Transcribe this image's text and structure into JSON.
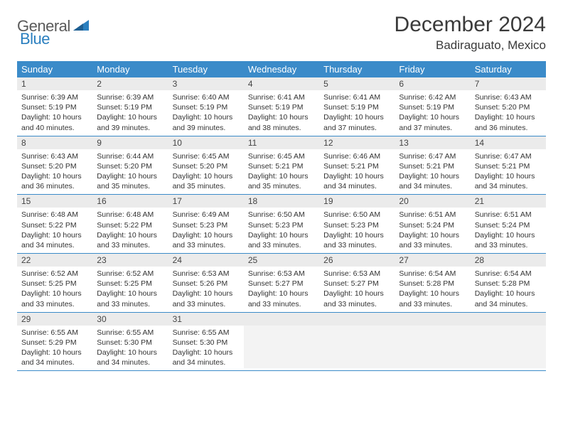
{
  "logo": {
    "t1": "General",
    "t2": "Blue"
  },
  "title": "December 2024",
  "location": "Badiraguato, Mexico",
  "weekdays": [
    "Sunday",
    "Monday",
    "Tuesday",
    "Wednesday",
    "Thursday",
    "Friday",
    "Saturday"
  ],
  "colors": {
    "header_bg": "#3b8bc9",
    "header_fg": "#ffffff",
    "daynum_bg": "#ebebeb",
    "border": "#3b8bc9",
    "logo_blue": "#2a7fbf"
  },
  "weeks": [
    [
      {
        "n": "1",
        "sr": "Sunrise: 6:39 AM",
        "ss": "Sunset: 5:19 PM",
        "dl1": "Daylight: 10 hours",
        "dl2": "and 40 minutes."
      },
      {
        "n": "2",
        "sr": "Sunrise: 6:39 AM",
        "ss": "Sunset: 5:19 PM",
        "dl1": "Daylight: 10 hours",
        "dl2": "and 39 minutes."
      },
      {
        "n": "3",
        "sr": "Sunrise: 6:40 AM",
        "ss": "Sunset: 5:19 PM",
        "dl1": "Daylight: 10 hours",
        "dl2": "and 39 minutes."
      },
      {
        "n": "4",
        "sr": "Sunrise: 6:41 AM",
        "ss": "Sunset: 5:19 PM",
        "dl1": "Daylight: 10 hours",
        "dl2": "and 38 minutes."
      },
      {
        "n": "5",
        "sr": "Sunrise: 6:41 AM",
        "ss": "Sunset: 5:19 PM",
        "dl1": "Daylight: 10 hours",
        "dl2": "and 37 minutes."
      },
      {
        "n": "6",
        "sr": "Sunrise: 6:42 AM",
        "ss": "Sunset: 5:19 PM",
        "dl1": "Daylight: 10 hours",
        "dl2": "and 37 minutes."
      },
      {
        "n": "7",
        "sr": "Sunrise: 6:43 AM",
        "ss": "Sunset: 5:20 PM",
        "dl1": "Daylight: 10 hours",
        "dl2": "and 36 minutes."
      }
    ],
    [
      {
        "n": "8",
        "sr": "Sunrise: 6:43 AM",
        "ss": "Sunset: 5:20 PM",
        "dl1": "Daylight: 10 hours",
        "dl2": "and 36 minutes."
      },
      {
        "n": "9",
        "sr": "Sunrise: 6:44 AM",
        "ss": "Sunset: 5:20 PM",
        "dl1": "Daylight: 10 hours",
        "dl2": "and 35 minutes."
      },
      {
        "n": "10",
        "sr": "Sunrise: 6:45 AM",
        "ss": "Sunset: 5:20 PM",
        "dl1": "Daylight: 10 hours",
        "dl2": "and 35 minutes."
      },
      {
        "n": "11",
        "sr": "Sunrise: 6:45 AM",
        "ss": "Sunset: 5:21 PM",
        "dl1": "Daylight: 10 hours",
        "dl2": "and 35 minutes."
      },
      {
        "n": "12",
        "sr": "Sunrise: 6:46 AM",
        "ss": "Sunset: 5:21 PM",
        "dl1": "Daylight: 10 hours",
        "dl2": "and 34 minutes."
      },
      {
        "n": "13",
        "sr": "Sunrise: 6:47 AM",
        "ss": "Sunset: 5:21 PM",
        "dl1": "Daylight: 10 hours",
        "dl2": "and 34 minutes."
      },
      {
        "n": "14",
        "sr": "Sunrise: 6:47 AM",
        "ss": "Sunset: 5:21 PM",
        "dl1": "Daylight: 10 hours",
        "dl2": "and 34 minutes."
      }
    ],
    [
      {
        "n": "15",
        "sr": "Sunrise: 6:48 AM",
        "ss": "Sunset: 5:22 PM",
        "dl1": "Daylight: 10 hours",
        "dl2": "and 34 minutes."
      },
      {
        "n": "16",
        "sr": "Sunrise: 6:48 AM",
        "ss": "Sunset: 5:22 PM",
        "dl1": "Daylight: 10 hours",
        "dl2": "and 33 minutes."
      },
      {
        "n": "17",
        "sr": "Sunrise: 6:49 AM",
        "ss": "Sunset: 5:23 PM",
        "dl1": "Daylight: 10 hours",
        "dl2": "and 33 minutes."
      },
      {
        "n": "18",
        "sr": "Sunrise: 6:50 AM",
        "ss": "Sunset: 5:23 PM",
        "dl1": "Daylight: 10 hours",
        "dl2": "and 33 minutes."
      },
      {
        "n": "19",
        "sr": "Sunrise: 6:50 AM",
        "ss": "Sunset: 5:23 PM",
        "dl1": "Daylight: 10 hours",
        "dl2": "and 33 minutes."
      },
      {
        "n": "20",
        "sr": "Sunrise: 6:51 AM",
        "ss": "Sunset: 5:24 PM",
        "dl1": "Daylight: 10 hours",
        "dl2": "and 33 minutes."
      },
      {
        "n": "21",
        "sr": "Sunrise: 6:51 AM",
        "ss": "Sunset: 5:24 PM",
        "dl1": "Daylight: 10 hours",
        "dl2": "and 33 minutes."
      }
    ],
    [
      {
        "n": "22",
        "sr": "Sunrise: 6:52 AM",
        "ss": "Sunset: 5:25 PM",
        "dl1": "Daylight: 10 hours",
        "dl2": "and 33 minutes."
      },
      {
        "n": "23",
        "sr": "Sunrise: 6:52 AM",
        "ss": "Sunset: 5:25 PM",
        "dl1": "Daylight: 10 hours",
        "dl2": "and 33 minutes."
      },
      {
        "n": "24",
        "sr": "Sunrise: 6:53 AM",
        "ss": "Sunset: 5:26 PM",
        "dl1": "Daylight: 10 hours",
        "dl2": "and 33 minutes."
      },
      {
        "n": "25",
        "sr": "Sunrise: 6:53 AM",
        "ss": "Sunset: 5:27 PM",
        "dl1": "Daylight: 10 hours",
        "dl2": "and 33 minutes."
      },
      {
        "n": "26",
        "sr": "Sunrise: 6:53 AM",
        "ss": "Sunset: 5:27 PM",
        "dl1": "Daylight: 10 hours",
        "dl2": "and 33 minutes."
      },
      {
        "n": "27",
        "sr": "Sunrise: 6:54 AM",
        "ss": "Sunset: 5:28 PM",
        "dl1": "Daylight: 10 hours",
        "dl2": "and 33 minutes."
      },
      {
        "n": "28",
        "sr": "Sunrise: 6:54 AM",
        "ss": "Sunset: 5:28 PM",
        "dl1": "Daylight: 10 hours",
        "dl2": "and 34 minutes."
      }
    ],
    [
      {
        "n": "29",
        "sr": "Sunrise: 6:55 AM",
        "ss": "Sunset: 5:29 PM",
        "dl1": "Daylight: 10 hours",
        "dl2": "and 34 minutes."
      },
      {
        "n": "30",
        "sr": "Sunrise: 6:55 AM",
        "ss": "Sunset: 5:30 PM",
        "dl1": "Daylight: 10 hours",
        "dl2": "and 34 minutes."
      },
      {
        "n": "31",
        "sr": "Sunrise: 6:55 AM",
        "ss": "Sunset: 5:30 PM",
        "dl1": "Daylight: 10 hours",
        "dl2": "and 34 minutes."
      },
      {
        "empty": true
      },
      {
        "empty": true
      },
      {
        "empty": true
      },
      {
        "empty": true
      }
    ]
  ]
}
